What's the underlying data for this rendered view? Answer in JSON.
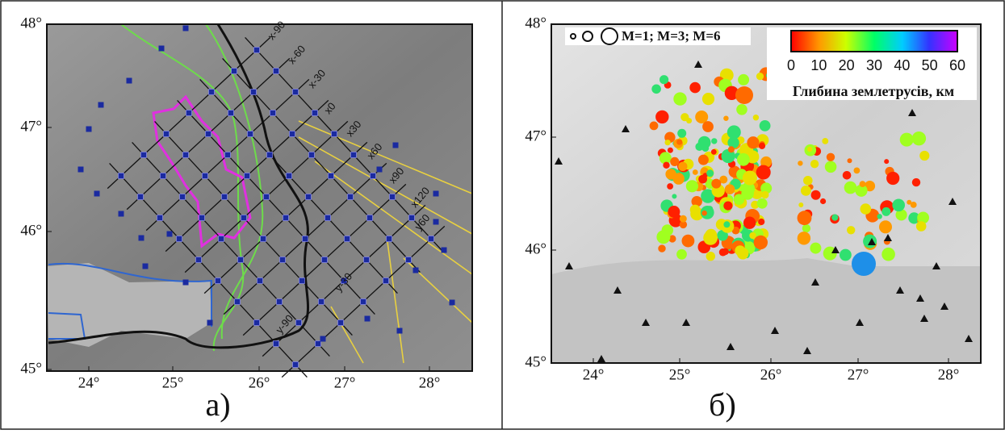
{
  "panels": [
    {
      "label": "а)",
      "lat_ticks": [
        "48°",
        "47°",
        "46°",
        "45°"
      ],
      "lon_ticks": [
        "24°",
        "25°",
        "26°",
        "27°",
        "28°"
      ],
      "grid_labels": [
        "x-90",
        "x-60",
        "x-30",
        "x0",
        "x30",
        "x60",
        "x90",
        "x120",
        "y60",
        "y-30",
        "y-90"
      ]
    },
    {
      "label": "б)",
      "lat_ticks": [
        "48°",
        "47°",
        "46°",
        "45°"
      ],
      "lon_ticks": [
        "24°",
        "25°",
        "26°",
        "27°",
        "28°"
      ],
      "legend": {
        "magnitudes": "M=1; M=3; M=6",
        "depth_ticks": [
          "0",
          "10",
          "20",
          "30",
          "40",
          "50",
          "60"
        ],
        "depth_title": "Глибина землетрусів, км"
      }
    }
  ]
}
